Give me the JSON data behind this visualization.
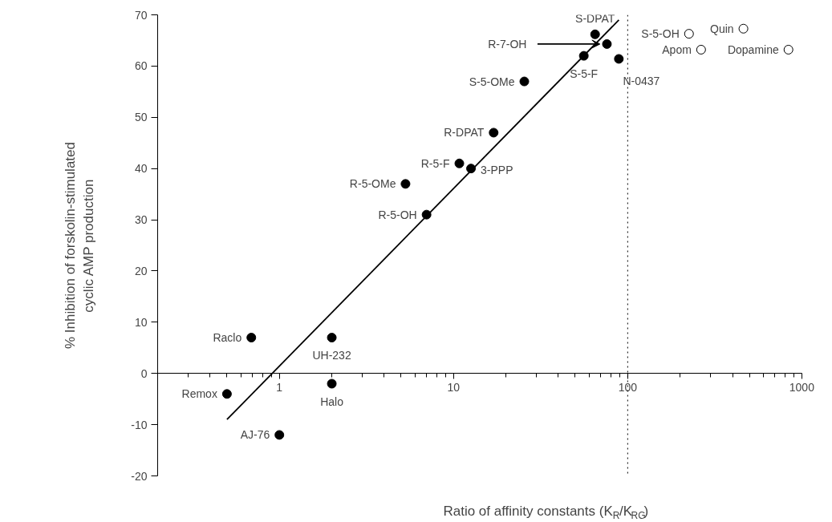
{
  "chart_data": {
    "type": "scatter",
    "xlabel": "Ratio of affinity constants (K$_{R}$/K$_{RG}$)",
    "ylabel": "% Inhibition of forskolin-stimulated\ncyclic AMP production",
    "log": "x",
    "grid": false,
    "xlim": [
      0.2,
      1000
    ],
    "ylim": [
      -20,
      70
    ],
    "xticks": [
      {
        "value": 0.2,
        "label": null
      },
      {
        "value": 0.3,
        "label": null
      },
      {
        "value": 0.4,
        "label": null
      },
      {
        "value": 0.5,
        "label": null
      },
      {
        "value": 0.6,
        "label": null
      },
      {
        "value": 0.7,
        "label": null
      },
      {
        "value": 0.8,
        "label": null
      },
      {
        "value": 0.9,
        "label": null
      },
      1,
      {
        "value": 2,
        "label": null
      },
      {
        "value": 3,
        "label": null
      },
      {
        "value": 4,
        "label": null
      },
      {
        "value": 5,
        "label": null
      },
      {
        "value": 6,
        "label": null
      },
      {
        "value": 7,
        "label": null
      },
      {
        "value": 8,
        "label": null
      },
      {
        "value": 9,
        "label": null
      },
      10,
      {
        "value": 20,
        "label": null
      },
      {
        "value": 30,
        "label": null
      },
      {
        "value": 40,
        "label": null
      },
      {
        "value": 50,
        "label": null
      },
      {
        "value": 60,
        "label": null
      },
      {
        "value": 70,
        "label": null
      },
      {
        "value": 80,
        "label": null
      },
      {
        "value": 90,
        "label": null
      },
      100,
      {
        "value": 200,
        "label": null
      },
      {
        "value": 300,
        "label": null
      },
      {
        "value": 400,
        "label": null
      },
      {
        "value": 500,
        "label": null
      },
      {
        "value": 600,
        "label": null
      },
      {
        "value": 700,
        "label": null
      },
      {
        "value": 800,
        "label": null
      },
      {
        "value": 900,
        "label": null
      },
      1000
    ],
    "yticks": [
      -20,
      -10,
      0,
      10,
      20,
      30,
      40,
      50,
      60,
      70
    ],
    "ref_lines": [
      {
        "axis": "x",
        "value": 100,
        "line_style": "dotted",
        "color": "#000000"
      }
    ],
    "series": [
      {
        "marker": "circle",
        "color": "#000000",
        "x": [
          0.69,
          2,
          2,
          0.5,
          1,
          7,
          5.3,
          10.8,
          12.6,
          17,
          25.5,
          65,
          76,
          56,
          89
        ],
        "values": [
          7,
          7,
          -2,
          -4,
          -12,
          31,
          37,
          41,
          40,
          47,
          57,
          66.2,
          64.3,
          62,
          61.4
        ]
      },
      {
        "marker": "circle",
        "color": "#000000",
        "x": [
          225,
          264,
          462,
          838
        ],
        "values": [
          66.3,
          63.2,
          67.3,
          63.2
        ]
      },
      {
        "type": "line",
        "marker": "none",
        "color": "#000000",
        "x": [
          0.5,
          89
        ],
        "values": [
          -9,
          69
        ]
      }
    ],
    "annotations": [
      {
        "text": "Raclo",
        "x": 0.69,
        "y": 7
      },
      {
        "text": "UH-232",
        "x": 2,
        "y": 7
      },
      {
        "text": "Halo",
        "x": 2,
        "y": -2
      },
      {
        "text": "Remox",
        "x": 0.5,
        "y": -4
      },
      {
        "text": "AJ-76",
        "x": 1,
        "y": -12
      },
      {
        "text": "R-5-OH",
        "x": 7,
        "y": 31
      },
      {
        "text": "R-5-OMe",
        "x": 5.3,
        "y": 37
      },
      {
        "text": "R-5-F",
        "x": 10.8,
        "y": 41
      },
      {
        "text": "3-PPP",
        "x": 12.6,
        "y": 40
      },
      {
        "text": "R-DPAT",
        "x": 17,
        "y": 47
      },
      {
        "text": "S-5-OMe",
        "x": 25.5,
        "y": 57
      },
      {
        "text": "S-DPAT",
        "x": 65,
        "y": 66.2
      },
      {
        "text": "R-7-OH",
        "x": 76,
        "y": 64.3
      },
      {
        "text": "S-5-F",
        "x": 56,
        "y": 62
      },
      {
        "text": "N-0437",
        "x": 89,
        "y": 61.4
      },
      {
        "text": "S-5-OH",
        "x": 225,
        "y": 66.3
      },
      {
        "text": "Apom",
        "x": 264,
        "y": 63.2
      },
      {
        "text": "Quin",
        "x": 462,
        "y": 67.3
      },
      {
        "text": "Dopamine",
        "x": 838,
        "y": 63.2
      }
    ]
  }
}
